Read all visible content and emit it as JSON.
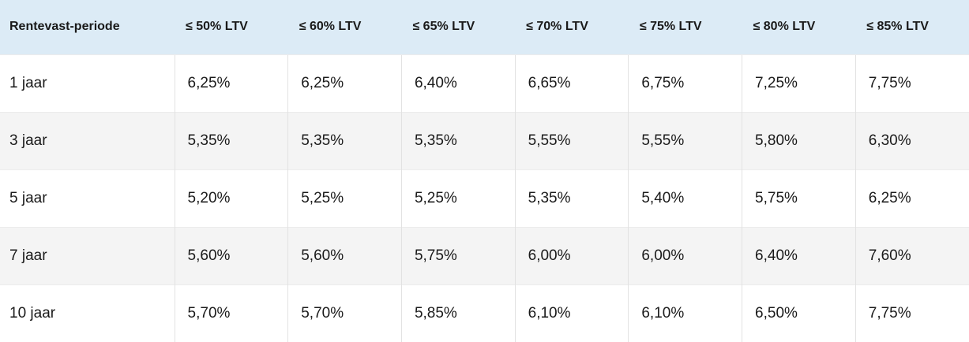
{
  "table": {
    "headers": [
      "Rentevast-periode",
      "≤ 50% LTV",
      "≤ 60% LTV",
      "≤ 65% LTV",
      "≤ 70% LTV",
      "≤ 75% LTV",
      "≤ 80% LTV",
      "≤ 85% LTV"
    ],
    "rows": [
      [
        "1 jaar",
        "6,25%",
        "6,25%",
        "6,40%",
        "6,65%",
        "6,75%",
        "7,25%",
        "7,75%"
      ],
      [
        "3 jaar",
        "5,35%",
        "5,35%",
        "5,35%",
        "5,55%",
        "5,55%",
        "5,80%",
        "6,30%"
      ],
      [
        "5 jaar",
        "5,20%",
        "5,25%",
        "5,25%",
        "5,35%",
        "5,40%",
        "5,75%",
        "6,25%"
      ],
      [
        "7 jaar",
        "5,60%",
        "5,60%",
        "5,75%",
        "6,00%",
        "6,00%",
        "6,40%",
        "7,60%"
      ],
      [
        "10 jaar",
        "5,70%",
        "5,70%",
        "5,85%",
        "6,10%",
        "6,10%",
        "6,50%",
        "7,75%"
      ]
    ]
  },
  "colors": {
    "header_background": "#dcebf6",
    "striped_row": "#f4f4f4",
    "text": "#1a1a1a"
  }
}
